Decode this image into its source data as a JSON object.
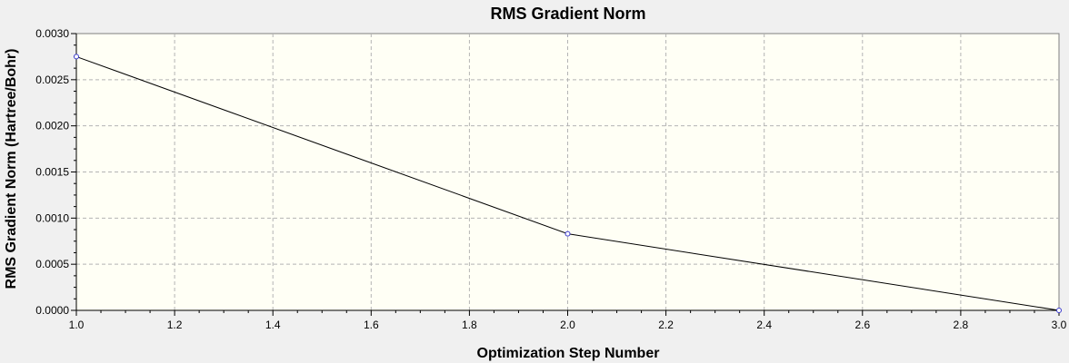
{
  "chart_data": {
    "type": "line",
    "title": "RMS Gradient Norm",
    "xlabel": "Optimization Step Number",
    "ylabel": "RMS Gradient Norm (Hartree/Bohr)",
    "xlim": [
      1.0,
      3.0
    ],
    "ylim": [
      0.0,
      0.003
    ],
    "x_ticks": [
      1.0,
      1.2,
      1.4,
      1.6,
      1.8,
      2.0,
      2.2,
      2.4,
      2.6,
      2.8,
      3.0
    ],
    "x_tick_labels": [
      "1.0",
      "1.2",
      "1.4",
      "1.6",
      "1.8",
      "2.0",
      "2.2",
      "2.4",
      "2.6",
      "2.8",
      "3.0"
    ],
    "y_ticks": [
      0.0,
      0.0005,
      0.001,
      0.0015,
      0.002,
      0.0025,
      0.003
    ],
    "y_tick_labels": [
      "0.0000",
      "0.0005",
      "0.0010",
      "0.0015",
      "0.0020",
      "0.0025",
      "0.0030"
    ],
    "grid": true,
    "legend": "none",
    "series": [
      {
        "x": [
          1,
          2,
          3
        ],
        "y": [
          0.00275,
          0.00083,
          0.0
        ]
      }
    ],
    "colors": {
      "plot_background": "#fffff5",
      "line": "#000000",
      "marker": "#3a3acd",
      "grid": "#b4b4b4",
      "window_background": "#f0f0f0"
    }
  }
}
